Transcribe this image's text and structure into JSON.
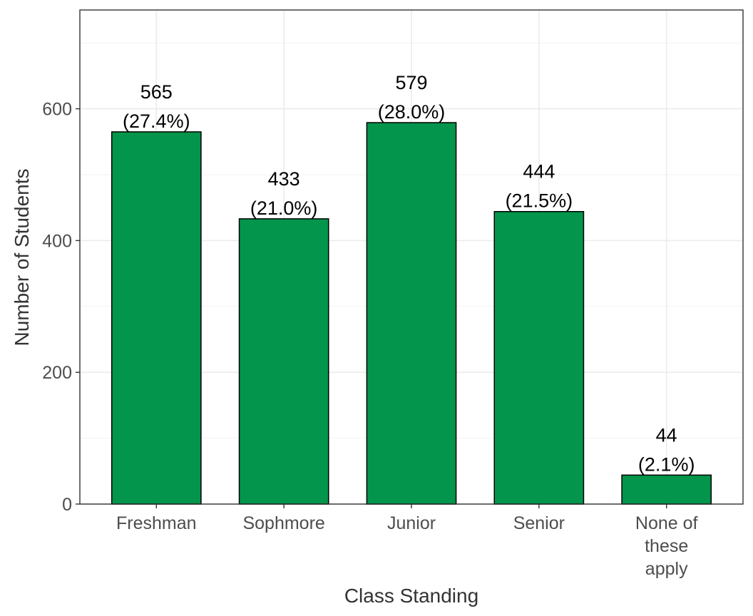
{
  "chart_data": {
    "type": "bar",
    "categories": [
      [
        "Freshman"
      ],
      [
        "Sophmore"
      ],
      [
        "Junior"
      ],
      [
        "Senior"
      ],
      [
        "None of",
        "these",
        "apply"
      ]
    ],
    "values": [
      565,
      433,
      579,
      444,
      44
    ],
    "percent_labels": [
      "(27.4%)",
      "(21.0%)",
      "(28.0%)",
      "(21.5%)",
      "(2.1%)"
    ],
    "value_labels": [
      "565",
      "433",
      "579",
      "444",
      "44"
    ],
    "xlabel": "Class Standing",
    "ylabel": "Number of Students",
    "ylim": [
      0,
      750
    ],
    "yticks": [
      0,
      200,
      400,
      600
    ],
    "ytick_labels": [
      "0",
      "200",
      "400",
      "600"
    ],
    "grid": true,
    "bar_color": "#03954b",
    "bar_outline": "#000000"
  }
}
